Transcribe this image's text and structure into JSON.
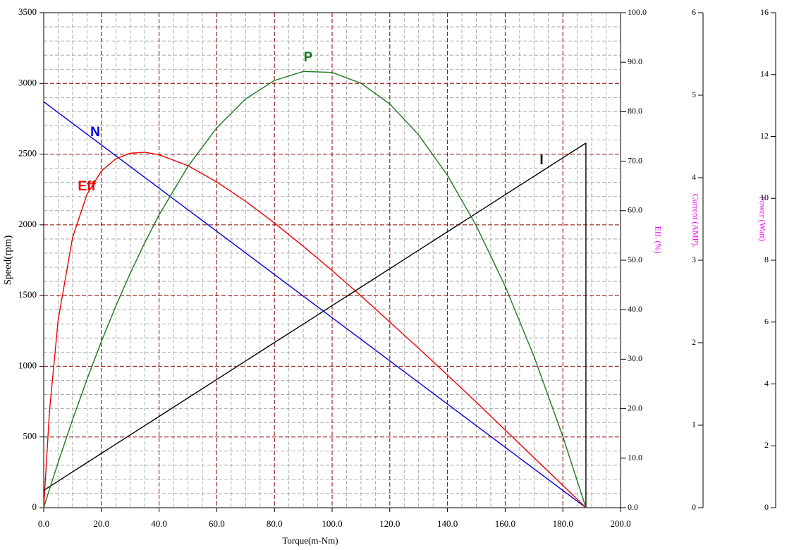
{
  "chart_data": {
    "type": "line",
    "xlabel": "Torque(m-Nm)",
    "ylabel": "Speed(rpm)",
    "y2label": "Eff. (%)",
    "y3label": "Current (AMP).",
    "y4label": "Power (Watt)",
    "grid": true,
    "x": [
      0,
      2,
      5,
      10,
      15,
      20,
      25,
      30,
      35,
      40,
      50,
      60,
      70,
      80,
      90,
      100,
      110,
      120,
      130,
      140,
      150,
      160,
      170,
      180,
      188
    ],
    "series": [
      {
        "name": "N",
        "color": "#0000dd",
        "axis": "y",
        "values": [
          2870,
          2839.5,
          2793.7,
          2717.3,
          2641.0,
          2564.7,
          2488.4,
          2412.0,
          2335.7,
          2259.4,
          2106.7,
          1954.0,
          1801.4,
          1648.7,
          1496.1,
          1343.4,
          1190.7,
          1038.1,
          885.4,
          732.8,
          580.1,
          427.4,
          274.8,
          122.1,
          0
        ]
      },
      {
        "name": "Eff",
        "color": "#ee0000",
        "axis": "y2",
        "values": [
          0,
          19.5,
          37.9,
          54.6,
          63.3,
          68.0,
          70.5,
          71.6,
          71.8,
          71.3,
          69.1,
          65.8,
          61.9,
          57.5,
          52.8,
          47.9,
          42.8,
          37.5,
          32.2,
          26.8,
          21.3,
          15.7,
          10.1,
          4.5,
          0
        ]
      },
      {
        "name": "I",
        "color": "#000000",
        "axis": "y3",
        "values": [
          0.21,
          0.255,
          0.322,
          0.434,
          0.546,
          0.658,
          0.77,
          0.882,
          0.994,
          1.106,
          1.33,
          1.554,
          1.778,
          2.002,
          2.225,
          2.449,
          2.673,
          2.897,
          3.121,
          3.345,
          3.569,
          3.793,
          4.017,
          4.241,
          4.42
        ]
      },
      {
        "name": "P",
        "color": "#1a7a1a",
        "axis": "y4",
        "values": [
          0,
          0.595,
          1.463,
          2.846,
          4.149,
          5.372,
          6.515,
          7.578,
          8.561,
          9.464,
          11.03,
          12.28,
          13.21,
          13.81,
          14.1,
          14.07,
          13.72,
          13.05,
          12.05,
          10.74,
          9.11,
          7.16,
          4.89,
          2.3,
          0
        ]
      }
    ],
    "xlim": [
      0,
      200
    ],
    "xticks": [
      {
        "value": 0,
        "label": "0.0"
      },
      {
        "value": 20,
        "label": "20.0"
      },
      {
        "value": 40,
        "label": "40.0"
      },
      {
        "value": 60,
        "label": "60.0"
      },
      {
        "value": 80,
        "label": "80.0"
      },
      {
        "value": 100,
        "label": "100.0"
      },
      {
        "value": 120,
        "label": "120.0"
      },
      {
        "value": 140,
        "label": "140.0"
      },
      {
        "value": 160,
        "label": "160.0"
      },
      {
        "value": 180,
        "label": "180.0"
      },
      {
        "value": 200,
        "label": "200.0"
      }
    ],
    "ylim": [
      0,
      3500
    ],
    "yticks": [
      0,
      500,
      1000,
      1500,
      2000,
      2500,
      3000,
      3500
    ],
    "y2lim": [
      0,
      100
    ],
    "y2ticks": [
      {
        "value": 0,
        "label": "0.0"
      },
      {
        "value": 10,
        "label": "10.0"
      },
      {
        "value": 20,
        "label": "20.0"
      },
      {
        "value": 30,
        "label": "30.0"
      },
      {
        "value": 40,
        "label": "40.0"
      },
      {
        "value": 50,
        "label": "50.0"
      },
      {
        "value": 60,
        "label": "60.0"
      },
      {
        "value": 70,
        "label": "70.0"
      },
      {
        "value": 80,
        "label": "80.0"
      },
      {
        "value": 90,
        "label": "90.0"
      },
      {
        "value": 100,
        "label": "100.0"
      }
    ],
    "y3lim": [
      0,
      6
    ],
    "y3ticks": [
      0,
      1,
      2,
      3,
      4,
      5,
      6
    ],
    "y4lim": [
      0,
      16
    ],
    "y4ticks": [
      0,
      2,
      4,
      6,
      8,
      10,
      12,
      14,
      16
    ]
  }
}
